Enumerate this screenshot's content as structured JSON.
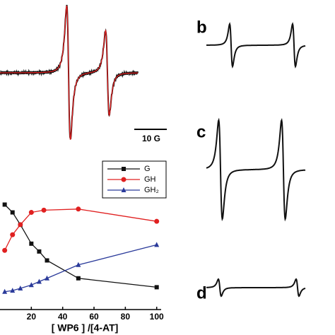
{
  "panel_labels": [
    "b",
    "c",
    "d"
  ],
  "scale_bar": "10 G",
  "chart_data": {
    "type": "line",
    "x_label": "[ WP6 ] /[4-AT]",
    "xlim": [
      0,
      106
    ],
    "xticks": [
      20,
      40,
      60,
      80,
      100
    ],
    "ylim": [
      0,
      1
    ],
    "series": [
      {
        "name": "G",
        "color": "#111111",
        "marker": "square",
        "x": [
          3,
          8,
          13,
          20,
          25,
          30,
          50,
          100
        ],
        "values": [
          0.94,
          0.87,
          0.76,
          0.59,
          0.52,
          0.44,
          0.28,
          0.2
        ]
      },
      {
        "name": "GH",
        "color": "#e02020",
        "marker": "circle",
        "x": [
          3,
          8,
          13,
          20,
          28,
          50,
          100
        ],
        "values": [
          0.53,
          0.67,
          0.76,
          0.87,
          0.89,
          0.9,
          0.79
        ]
      },
      {
        "name": "GH₂",
        "color": "#2a3a9a",
        "marker": "triangle",
        "x": [
          3,
          8,
          13,
          20,
          25,
          30,
          50,
          100
        ],
        "values": [
          0.16,
          0.17,
          0.19,
          0.22,
          0.25,
          0.28,
          0.4,
          0.58
        ]
      }
    ]
  }
}
